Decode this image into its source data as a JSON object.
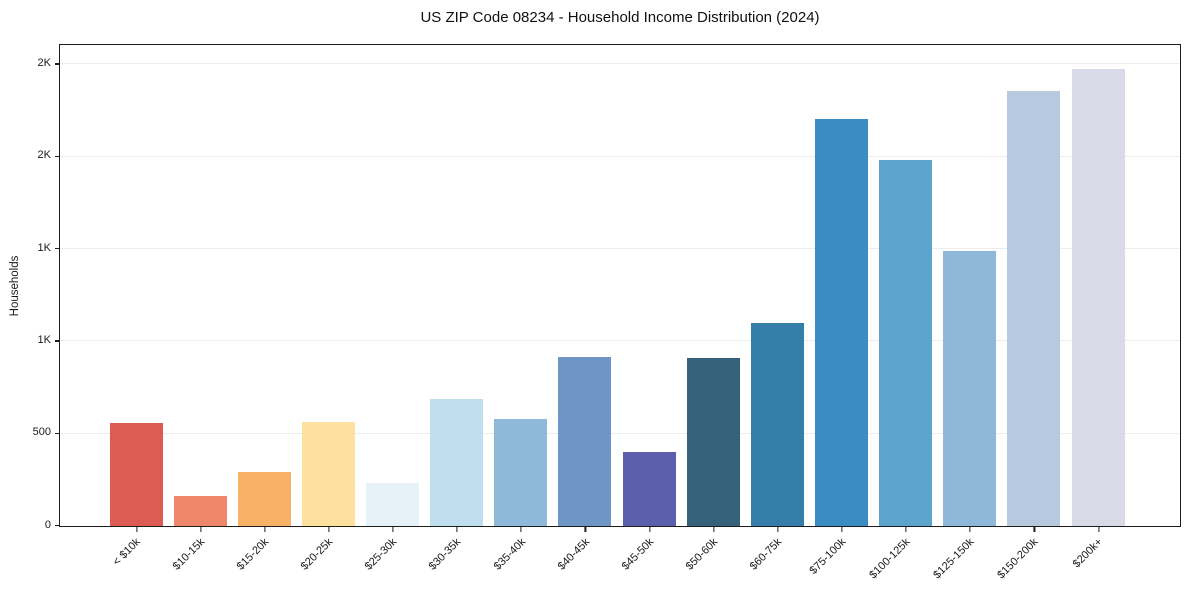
{
  "chart_data": {
    "type": "bar",
    "title": "US ZIP Code 08234 - Household Income Distribution (2024)",
    "xlabel": "",
    "ylabel": "Households",
    "categories": [
      "< $10k",
      "$10-15k",
      "$15-20k",
      "$20-25k",
      "$25-30k",
      "$30-35k",
      "$35-40k",
      "$40-45k",
      "$45-50k",
      "$50-60k",
      "$60-75k",
      "$75-100k",
      "$100-125k",
      "$125-150k",
      "$150-200k",
      "$200k+"
    ],
    "values": [
      560,
      165,
      295,
      562,
      235,
      690,
      580,
      915,
      400,
      910,
      1100,
      2205,
      1985,
      1490,
      2355,
      2475
    ],
    "bar_colors": [
      "#dc5b52",
      "#f0876a",
      "#f9b168",
      "#fce29e",
      "#e7f2f8",
      "#c0dfee",
      "#8fb9d9",
      "#6f94c6",
      "#5b5fac",
      "#35627a",
      "#347ea9",
      "#3a8cc3",
      "#5ca4cc",
      "#8fb8d8",
      "#b7c9df",
      "#d8dae7"
    ],
    "yticks": [
      {
        "value": 0,
        "label": "0"
      },
      {
        "value": 500,
        "label": "500"
      },
      {
        "value": 1000,
        "label": "1K"
      },
      {
        "value": 1500,
        "label": "1K"
      },
      {
        "value": 2000,
        "label": "2K"
      },
      {
        "value": 2500,
        "label": "2K"
      }
    ],
    "ylim": [
      0,
      2600
    ],
    "grid": true,
    "gridline_color": "#ececec",
    "spine_color": "#1c1c1c",
    "background": "#ffffff",
    "legend": "none"
  }
}
